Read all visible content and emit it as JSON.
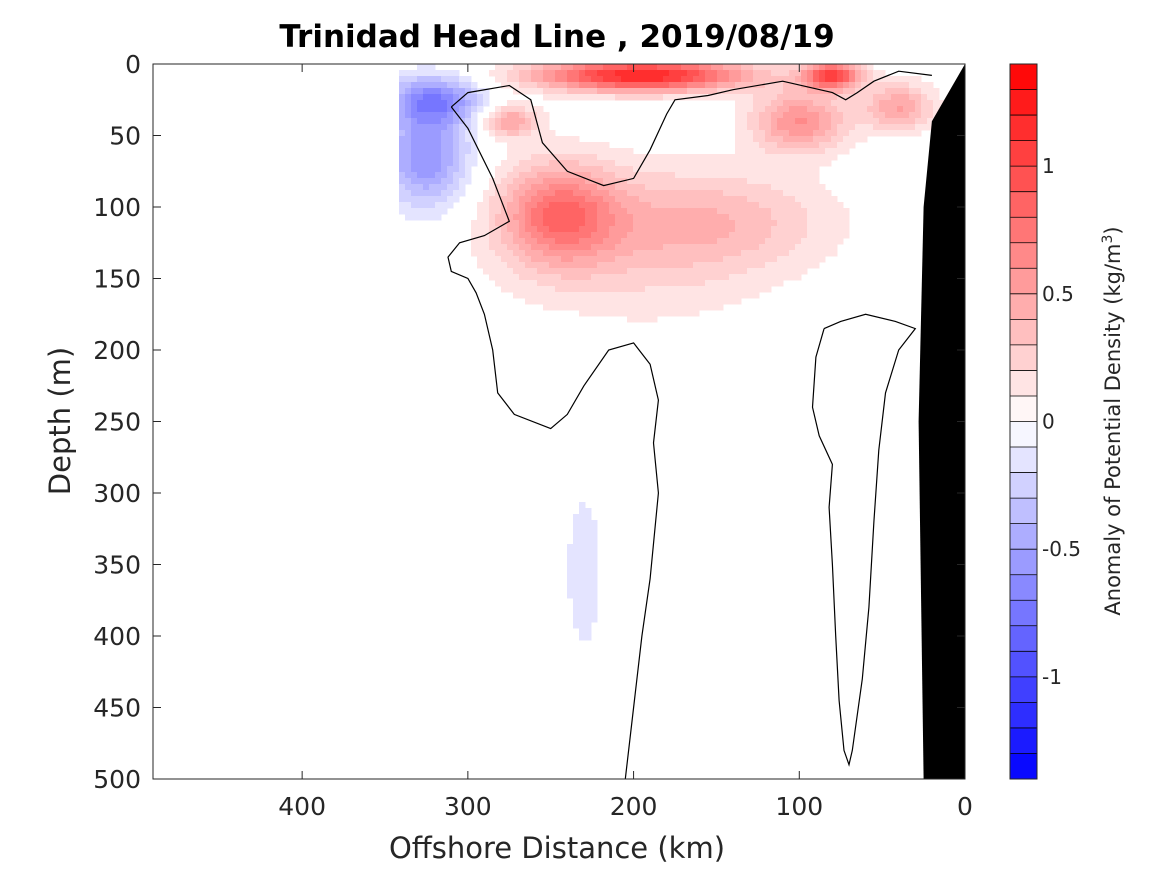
{
  "chart_data": {
    "type": "contour",
    "title": "Trinidad Head Line , 2019/08/19",
    "xlabel": "Offshore Distance (km)",
    "ylabel": "Depth (m)",
    "x_ticks": [
      "400",
      "300",
      "200",
      "100",
      "0"
    ],
    "x_tick_values": [
      400,
      300,
      200,
      100,
      0
    ],
    "xlim": [
      490,
      0
    ],
    "x_reversed": true,
    "y_ticks": [
      "0",
      "50",
      "100",
      "150",
      "200",
      "250",
      "300",
      "350",
      "400",
      "450",
      "500"
    ],
    "y_tick_values": [
      0,
      50,
      100,
      150,
      200,
      250,
      300,
      350,
      400,
      450,
      500
    ],
    "ylim": [
      0,
      500
    ],
    "y_reversed": true,
    "colorbar": {
      "label": "Anomaly of Potential Density (kg/m",
      "label_superscript": "3",
      "label_close": ")",
      "ticks": [
        "1",
        "0.5",
        "0",
        "-0.5",
        "-1"
      ],
      "tick_values": [
        1,
        0.5,
        0,
        -0.5,
        -1
      ],
      "range": [
        -1.4,
        1.4
      ],
      "levels": 28,
      "low_color": "#0000ff",
      "mid_color": "#ffffff",
      "high_color": "#ff0000"
    },
    "zero_contours": [
      {
        "name": "upper shelf contour",
        "points": [
          [
            310,
            30
          ],
          [
            300,
            20
          ],
          [
            275,
            15
          ],
          [
            262,
            25
          ],
          [
            255,
            55
          ],
          [
            240,
            75
          ],
          [
            218,
            85
          ],
          [
            200,
            80
          ],
          [
            190,
            60
          ],
          [
            180,
            35
          ],
          [
            175,
            25
          ],
          [
            155,
            22
          ],
          [
            140,
            18
          ],
          [
            110,
            12
          ],
          [
            80,
            20
          ],
          [
            72,
            25
          ],
          [
            65,
            20
          ],
          [
            55,
            12
          ],
          [
            40,
            5
          ],
          [
            20,
            8
          ]
        ]
      },
      {
        "name": "deep western contour",
        "points": [
          [
            310,
            30
          ],
          [
            300,
            45
          ],
          [
            285,
            80
          ],
          [
            280,
            95
          ],
          [
            275,
            110
          ],
          [
            290,
            120
          ],
          [
            305,
            125
          ],
          [
            312,
            135
          ],
          [
            310,
            145
          ],
          [
            300,
            150
          ],
          [
            295,
            160
          ],
          [
            290,
            175
          ],
          [
            285,
            200
          ],
          [
            282,
            230
          ],
          [
            272,
            245
          ],
          [
            250,
            255
          ],
          [
            240,
            245
          ],
          [
            230,
            225
          ],
          [
            215,
            200
          ],
          [
            200,
            195
          ],
          [
            190,
            210
          ],
          [
            185,
            235
          ],
          [
            188,
            265
          ],
          [
            185,
            300
          ],
          [
            190,
            360
          ],
          [
            195,
            400
          ],
          [
            200,
            450
          ],
          [
            205,
            500
          ]
        ]
      },
      {
        "name": "eastern deep loop",
        "points": [
          [
            85,
            185
          ],
          [
            90,
            205
          ],
          [
            92,
            240
          ],
          [
            88,
            260
          ],
          [
            80,
            280
          ],
          [
            82,
            310
          ],
          [
            80,
            350
          ],
          [
            78,
            400
          ],
          [
            76,
            445
          ],
          [
            73,
            480
          ],
          [
            70,
            490
          ],
          [
            68,
            480
          ],
          [
            62,
            430
          ],
          [
            58,
            380
          ],
          [
            55,
            320
          ],
          [
            52,
            270
          ],
          [
            48,
            230
          ],
          [
            40,
            200
          ],
          [
            30,
            185
          ],
          [
            42,
            180
          ],
          [
            60,
            175
          ],
          [
            75,
            180
          ],
          [
            85,
            185
          ]
        ]
      }
    ],
    "fields": [
      {
        "sign": "negative",
        "description": "near-surface low density",
        "blobs": [
          [
            195,
            8,
            45,
            8,
            1.2
          ],
          [
            80,
            8,
            12,
            7,
            1.0
          ],
          [
            320,
            25,
            20,
            12,
            -0.6
          ],
          [
            325,
            65,
            18,
            25,
            -0.6
          ],
          [
            230,
            355,
            15,
            80,
            -0.12
          ]
        ]
      },
      {
        "sign": "positive",
        "description": "subsurface high density",
        "blobs": [
          [
            245,
            105,
            25,
            25,
            0.7
          ],
          [
            275,
            40,
            12,
            8,
            0.5
          ],
          [
            100,
            40,
            20,
            15,
            0.6
          ],
          [
            40,
            30,
            15,
            12,
            0.5
          ],
          [
            150,
            110,
            50,
            25,
            0.3
          ],
          [
            200,
            130,
            60,
            40,
            0.2
          ]
        ]
      }
    ],
    "coastline": {
      "description": "bottom topography (black)",
      "points": [
        [
          0,
          0
        ],
        [
          20,
          40
        ],
        [
          25,
          100
        ],
        [
          28,
          250
        ],
        [
          25,
          500
        ],
        [
          0,
          500
        ]
      ]
    }
  }
}
